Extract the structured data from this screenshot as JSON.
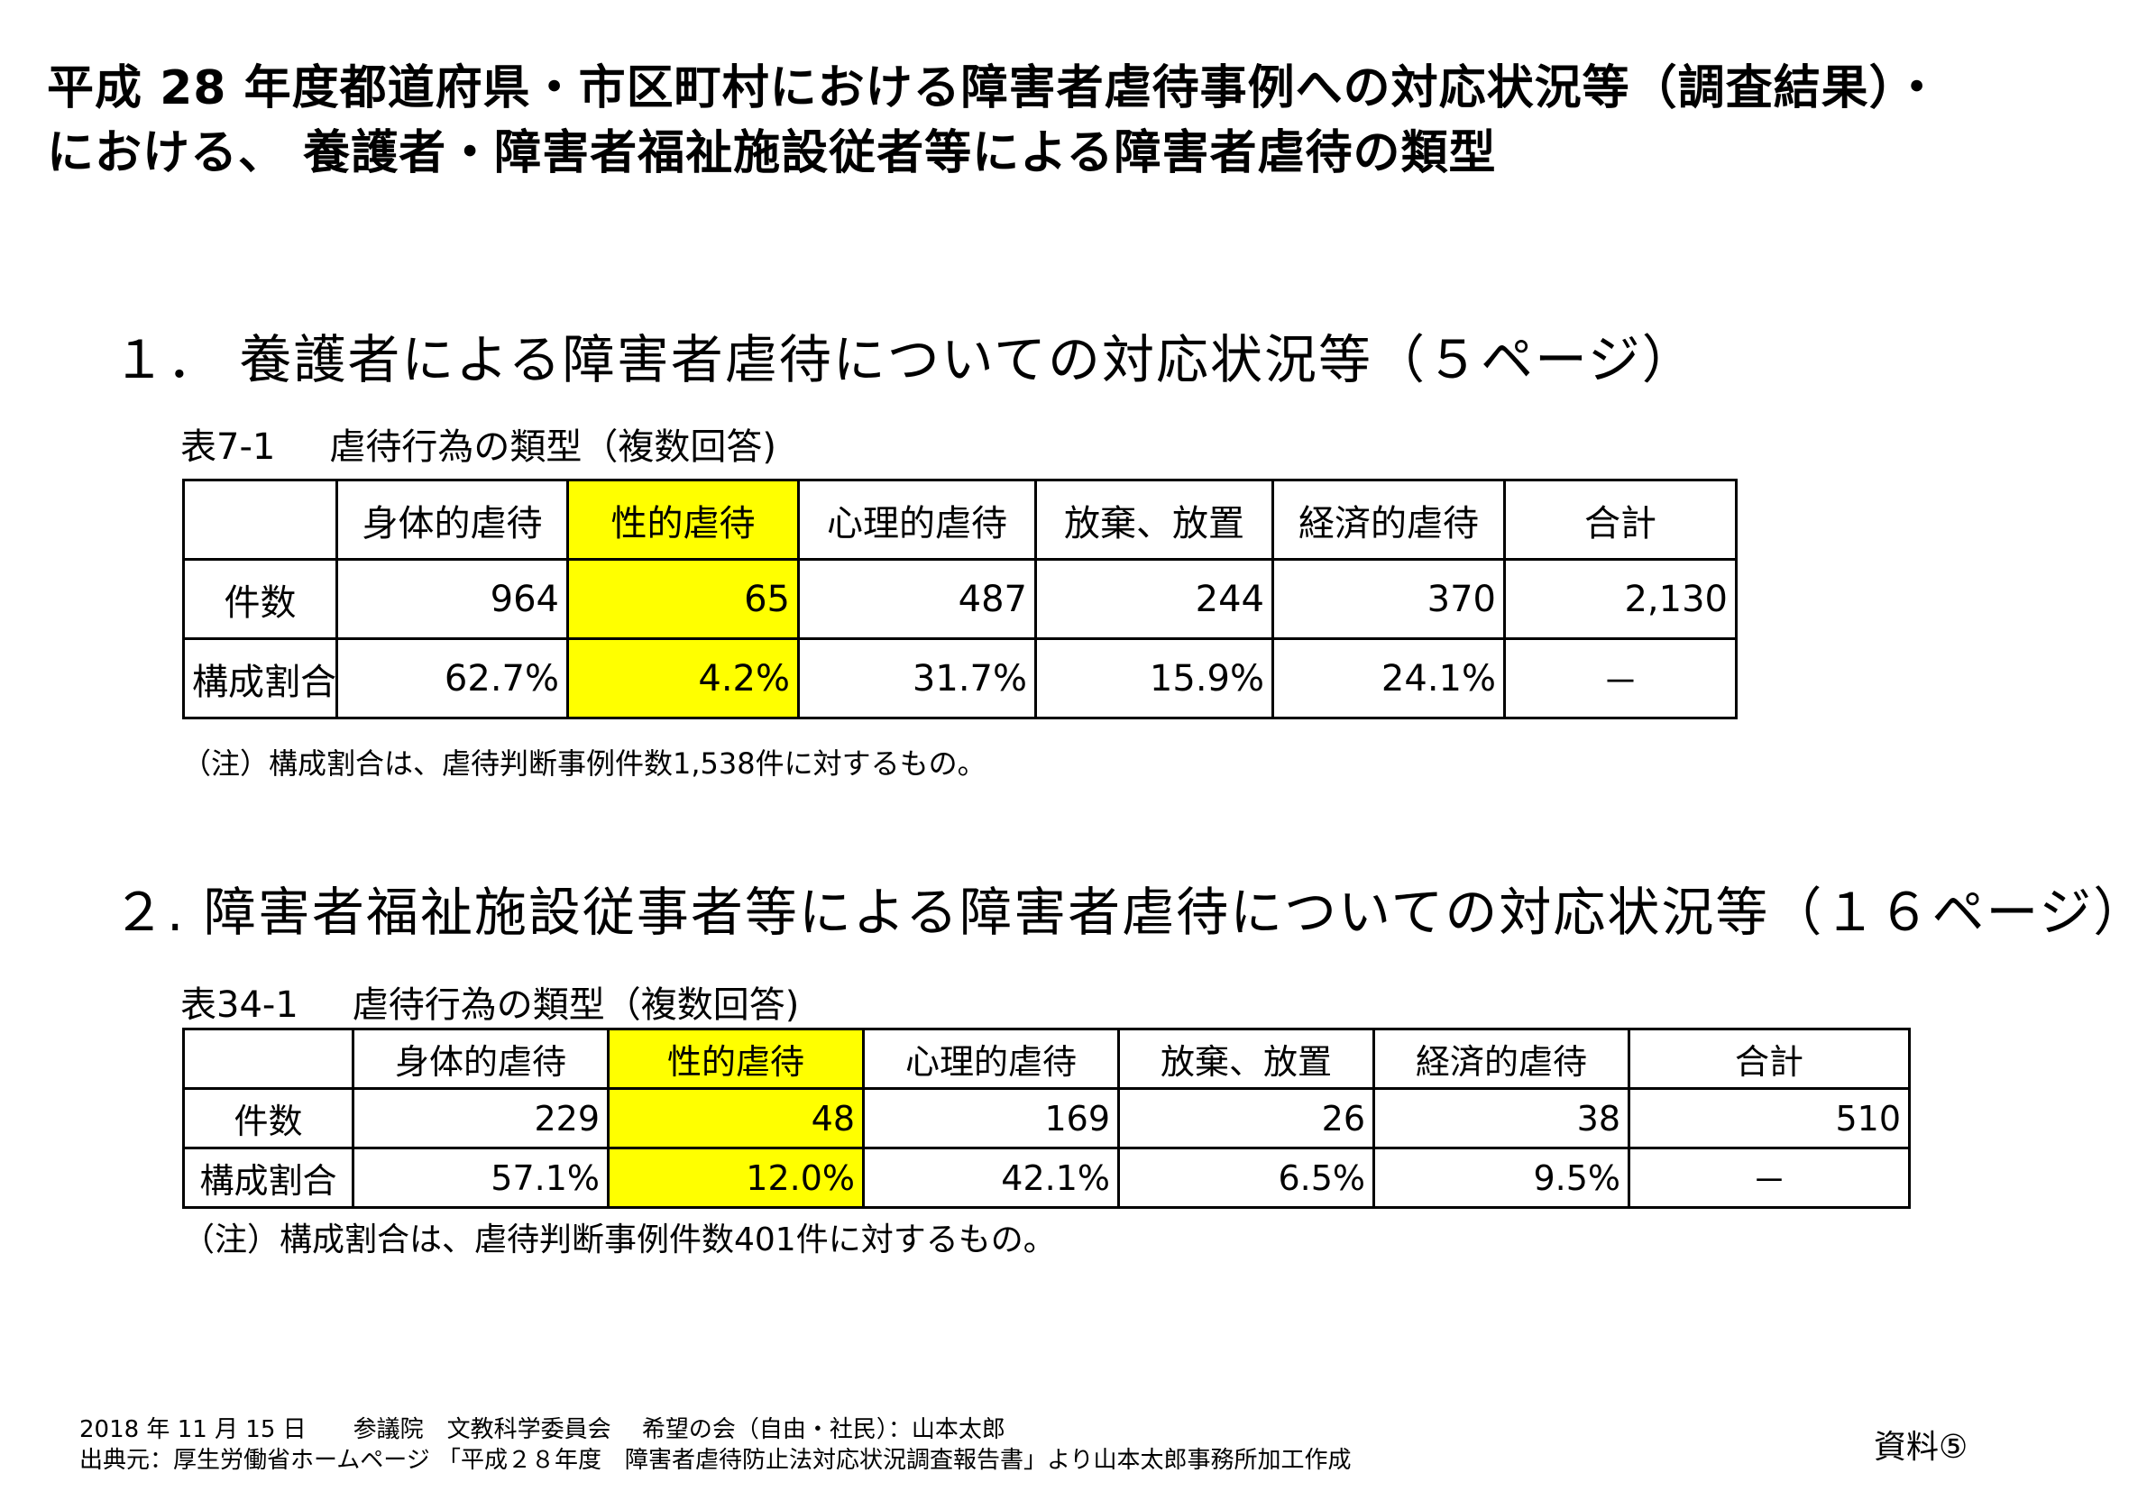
{
  "title": {
    "line1": "平成 28 年度都道府県・市区町村における障害者虐待事例への対応状況等（調査結果）・",
    "line2": "における、 養護者・障害者福祉施設従者等による障害者虐待の類型"
  },
  "section1": {
    "heading": "１． 養護者による障害者虐待についての対応状況等（５ページ）",
    "caption_label": "表7-1",
    "caption_text": "虐待行為の類型（複数回答)",
    "columns": [
      "身体的虐待",
      "性的虐待",
      "心理的虐待",
      "放棄、放置",
      "経済的虐待",
      "合計"
    ],
    "rows": [
      {
        "label": "件数",
        "values": [
          "964",
          "65",
          "487",
          "244",
          "370",
          "2,130"
        ]
      },
      {
        "label": "構成割合",
        "values": [
          "62.7%",
          "4.2%",
          "31.7%",
          "15.9%",
          "24.1%",
          "－"
        ]
      }
    ],
    "note": "（注）構成割合は、虐待判断事例件数1,538件に対するもの。"
  },
  "section2": {
    "heading": "２. 障害者福祉施設従事者等による障害者虐待についての対応状況等（１６ページ）",
    "caption_label": "表34-1",
    "caption_text": "虐待行為の類型（複数回答)",
    "columns": [
      "身体的虐待",
      "性的虐待",
      "心理的虐待",
      "放棄、放置",
      "経済的虐待",
      "合計"
    ],
    "rows": [
      {
        "label": "件数",
        "values": [
          "229",
          "48",
          "169",
          "26",
          "38",
          "510"
        ]
      },
      {
        "label": "構成割合",
        "values": [
          "57.1%",
          "12.0%",
          "42.1%",
          "6.5%",
          "9.5%",
          "－"
        ]
      }
    ],
    "note": "（注）構成割合は、虐待判断事例件数401件に対するもの。"
  },
  "highlight_color": "#ffff00",
  "footer": {
    "line1": "2018 年 11 月 15 日　　参議院　文教科学委員会　 希望の会（自由・社民）：山本太郎",
    "line2": "出典元：厚生労働省ホームページ 「平成２８年度　障害者虐待防止法対応状況調査報告書」より山本太郎事務所加工作成",
    "document_label": "資料⑤"
  }
}
